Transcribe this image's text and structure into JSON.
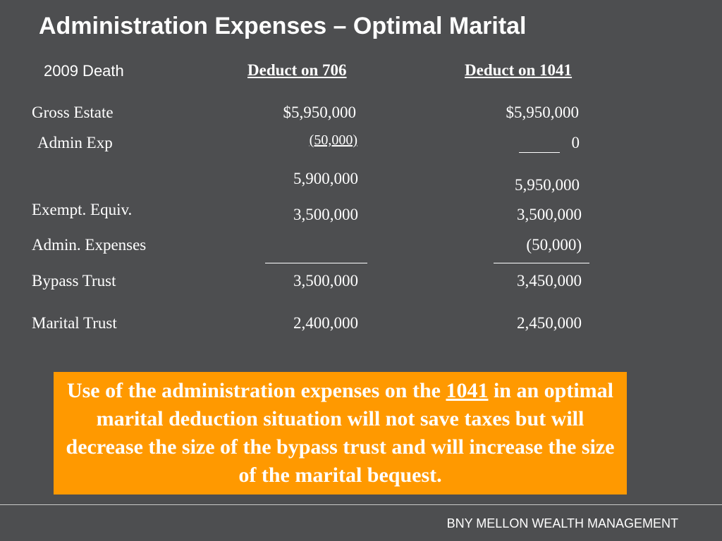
{
  "slide": {
    "title": "Administration Expenses – Optimal Marital",
    "subtitle": "2009 Death",
    "columns": {
      "col1": "Deduct on 706",
      "col2": "Deduct on 1041"
    },
    "rows": {
      "gross_estate": {
        "label": "Gross Estate",
        "col1": "$5,950,000",
        "col2": "$5,950,000"
      },
      "admin_exp": {
        "label": "Admin Exp",
        "col1": "(50,000)",
        "col2": "0"
      },
      "subtotal": {
        "col1": "5,900,000",
        "col2": "5,950,000"
      },
      "exempt_equiv": {
        "label": "Exempt. Equiv.",
        "col1": "3,500,000",
        "col2": "3,500,000"
      },
      "admin_expenses": {
        "label": "Admin. Expenses",
        "col2": "(50,000)"
      },
      "bypass_trust": {
        "label": "Bypass Trust",
        "col1": "3,500,000",
        "col2": "3,450,000"
      },
      "marital_trust": {
        "label": "Marital Trust",
        "col1": "2,400,000",
        "col2": "2,450,000"
      }
    },
    "callout": {
      "before": "Use of the administration expenses on the ",
      "emphasis": "1041",
      "after": " in an optimal marital deduction situation will not save taxes but will decrease the size of the bypass trust and will increase the size of the marital bequest."
    },
    "footer": "BNY MELLON WEALTH MANAGEMENT"
  },
  "colors": {
    "background": "#4d4e50",
    "callout": "#ff9900",
    "text": "#ffffff"
  }
}
